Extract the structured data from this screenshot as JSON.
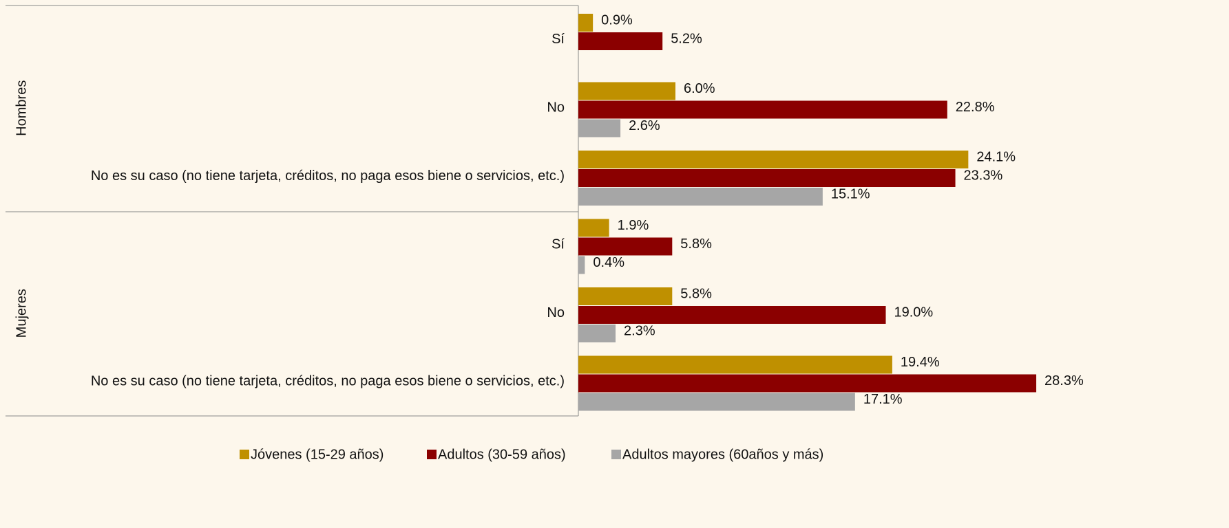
{
  "chart_data": {
    "type": "bar",
    "orientation": "horizontal",
    "groups": [
      "Hombres",
      "Mujeres"
    ],
    "categories": [
      "Sí",
      "No",
      "No es su caso (no tiene tarjeta, créditos, no paga esos biene o servicios, etc.)",
      "Sí",
      "No",
      "No es su caso (no tiene tarjeta, créditos, no paga esos biene o servicios, etc.)"
    ],
    "series": [
      {
        "name": "Jóvenes (15-29 años)",
        "color": "#bf9000",
        "values": [
          0.9,
          6.0,
          24.1,
          1.9,
          5.8,
          19.4
        ],
        "value_labels": [
          "0.9%",
          "6.0%",
          "24.1%",
          "1.9%",
          "5.8%",
          "19.4%"
        ]
      },
      {
        "name": "Adultos (30-59 años)",
        "color": "#8b0000",
        "values": [
          5.2,
          22.8,
          23.3,
          5.8,
          19.0,
          28.3
        ],
        "value_labels": [
          "5.2%",
          "22.8%",
          "23.3%",
          "5.8%",
          "19.0%",
          "28.3%"
        ]
      },
      {
        "name": "Adultos mayores (60años y más)",
        "color": "#a6a6a6",
        "values": [
          null,
          2.6,
          15.1,
          0.4,
          2.3,
          17.1
        ],
        "value_labels": [
          null,
          "2.6%",
          "15.1%",
          "0.4%",
          "2.3%",
          "17.1%"
        ]
      }
    ],
    "legend": "bottom"
  }
}
